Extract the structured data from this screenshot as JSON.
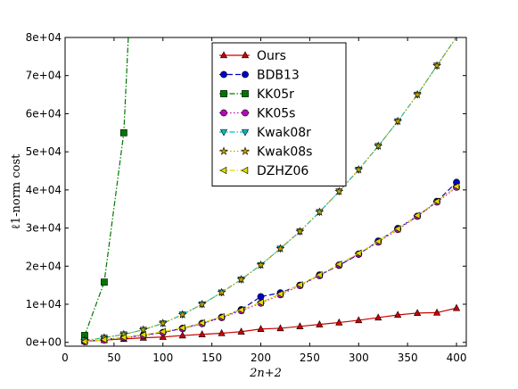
{
  "chart_data": {
    "type": "line",
    "xlabel": "2n+2",
    "ylabel": "ℓ1-norm cost",
    "xlim": [
      0,
      410
    ],
    "ylim": [
      -1000,
      80000
    ],
    "xticks": [
      0,
      50,
      100,
      150,
      200,
      250,
      300,
      350,
      400
    ],
    "yticks": [
      0,
      10000,
      20000,
      30000,
      40000,
      50000,
      60000,
      70000,
      80000
    ],
    "xtick_labels": [
      "0",
      "50",
      "100",
      "150",
      "200",
      "250",
      "300",
      "350",
      "400"
    ],
    "ytick_labels": [
      "0e+00",
      "1e+04",
      "2e+04",
      "3e+04",
      "4e+04",
      "5e+04",
      "6e+04",
      "7e+04",
      "8e+04"
    ],
    "legend_position": "upper-center",
    "grid": false,
    "series": [
      {
        "name": "Ours",
        "color": "#cc0000",
        "marker": "triangle-up",
        "linestyle": "solid",
        "x": [
          20,
          40,
          60,
          80,
          100,
          120,
          140,
          160,
          180,
          200,
          220,
          240,
          260,
          280,
          300,
          320,
          340,
          360,
          380,
          400
        ],
        "y": [
          300,
          600,
          900,
          1200,
          1400,
          1800,
          2100,
          2400,
          2800,
          3500,
          3700,
          4200,
          4700,
          5200,
          5800,
          6500,
          7200,
          7700,
          7800,
          9000
        ]
      },
      {
        "name": "BDB13",
        "color": "#0000cc",
        "marker": "circle",
        "linestyle": "dashed",
        "x": [
          20,
          40,
          60,
          80,
          100,
          120,
          140,
          160,
          180,
          200,
          220,
          240,
          260,
          280,
          300,
          320,
          340,
          360,
          380,
          400
        ],
        "y": [
          200,
          700,
          1300,
          1900,
          2600,
          3700,
          5000,
          6600,
          8600,
          12000,
          13000,
          15000,
          17700,
          20200,
          23100,
          26600,
          29900,
          33100,
          37000,
          42000
        ]
      },
      {
        "name": "KK05r",
        "color": "#007700",
        "marker": "square",
        "linestyle": "dashdot",
        "x": [
          20,
          40,
          60,
          65
        ],
        "y": [
          1800,
          15800,
          55000,
          82000
        ]
      },
      {
        "name": "KK05s",
        "color": "#bf00bf",
        "marker": "circle",
        "linestyle": "dotted",
        "x": [
          20,
          40,
          60,
          80,
          100,
          120,
          140,
          160,
          180,
          200,
          220,
          240,
          260,
          280,
          300,
          320,
          340,
          360,
          380,
          400
        ],
        "y": [
          200,
          600,
          1200,
          1800,
          2600,
          3600,
          4900,
          6500,
          8300,
          10300,
          12500,
          14900,
          17500,
          20300,
          23200,
          26300,
          29600,
          33100,
          36800,
          40700
        ]
      },
      {
        "name": "Kwak08r",
        "color": "#00bfbf",
        "marker": "triangle-down",
        "linestyle": "dashdot",
        "x": [
          20,
          40,
          60,
          80,
          100,
          120,
          140,
          160,
          180,
          200,
          220,
          240,
          260,
          280,
          300,
          320,
          340,
          360,
          380,
          400
        ],
        "y": [
          500,
          1200,
          2100,
          3300,
          5000,
          7300,
          10000,
          13100,
          16500,
          20300,
          24600,
          29100,
          34200,
          39600,
          45300,
          51500,
          58000,
          65000,
          72600,
          80100
        ]
      },
      {
        "name": "Kwak08s",
        "color": "#bf9f00",
        "marker": "star",
        "linestyle": "dotted",
        "x": [
          20,
          40,
          60,
          80,
          100,
          120,
          140,
          160,
          180,
          200,
          220,
          240,
          260,
          280,
          300,
          320,
          340,
          360,
          380,
          400
        ],
        "y": [
          500,
          1200,
          2100,
          3300,
          5000,
          7300,
          10000,
          13100,
          16500,
          20300,
          24600,
          29100,
          34200,
          39600,
          45300,
          51500,
          58000,
          65000,
          72600,
          80100
        ]
      },
      {
        "name": "DZHZ06",
        "color": "#dddd00",
        "marker": "triangle-left",
        "linestyle": "dashdot",
        "x": [
          20,
          40,
          60,
          80,
          100,
          120,
          140,
          160,
          180,
          200,
          220,
          240,
          260,
          280,
          300,
          320,
          340,
          360,
          380,
          400
        ],
        "y": [
          200,
          700,
          1300,
          2000,
          2800,
          3800,
          5100,
          6700,
          8500,
          10500,
          12700,
          15100,
          17700,
          20500,
          23400,
          26500,
          29800,
          33300,
          37000,
          40900
        ]
      }
    ]
  }
}
